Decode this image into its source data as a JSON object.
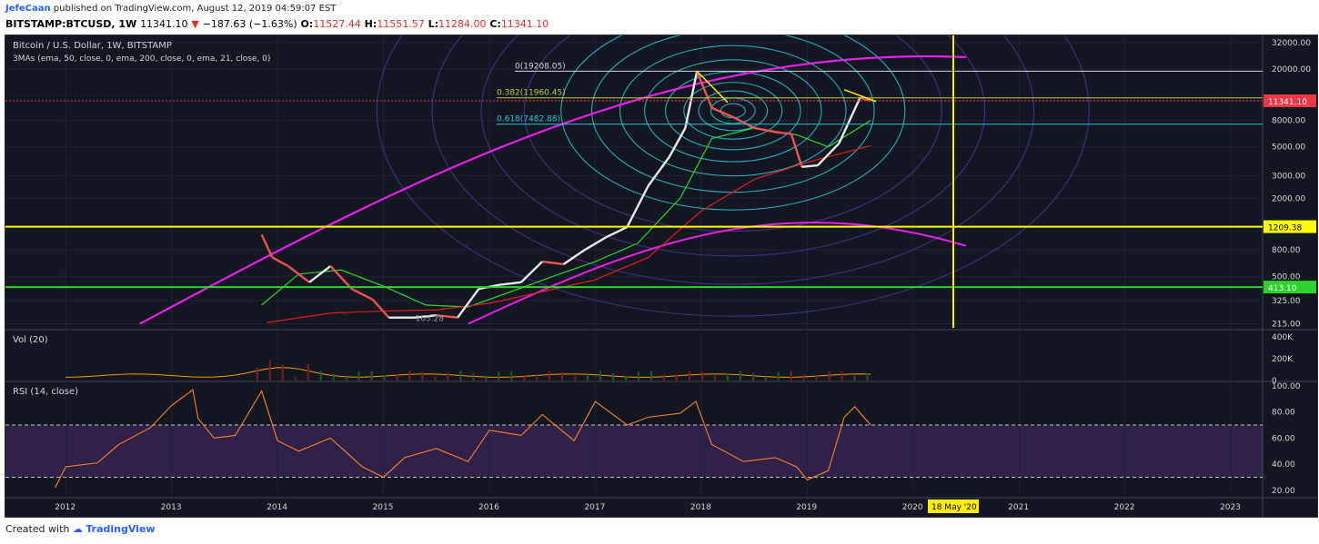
{
  "header": {
    "author": "JefeCaan",
    "published": "published on TradingView.com, August 12, 2019 04:59:07 EST",
    "symbol": "BITSTAMP:BTCUSD, 1W",
    "last": "11341.10",
    "change": "−187.63 (−1.63%)",
    "o_label": "O:",
    "o": "11527.44",
    "h_label": "H:",
    "h": "11551.57",
    "l_label": "L:",
    "l": "11284.00",
    "c_label": "C:",
    "c": "11341.10"
  },
  "footer": {
    "created_with": "Created with",
    "brand": "TradingView"
  },
  "chart_data": [
    {
      "type": "line",
      "title": "Bitcoin / U.S. Dollar, 1W, BITSTAMP",
      "indicator_label": "3MAs (ema, 50, close, 0, ema, 200, close, 0, ema, 21, close, 0)",
      "y_scale": "log",
      "ylim": [
        200,
        34000
      ],
      "y_ticks": [
        "32000.00",
        "20000.00",
        "8000.00",
        "5000.00",
        "3000.00",
        "2000.00",
        "800.00",
        "500.00",
        "325.00",
        "215.00"
      ],
      "x_ticks": [
        "2012",
        "2013",
        "2014",
        "2015",
        "2016",
        "2017",
        "2018",
        "2019",
        "2020",
        "2021",
        "2022",
        "2023"
      ],
      "x_range": [
        2011.5,
        2023.3
      ],
      "series": [
        {
          "values_x": [
            2013.85,
            2013.95,
            2014.1,
            2014.3,
            2014.5,
            2014.7,
            2014.9,
            2015.05,
            2015.3,
            2015.5,
            2015.7,
            2015.9,
            2016.1,
            2016.3,
            2016.5,
            2016.7,
            2016.9,
            2017.1,
            2017.3,
            2017.5,
            2017.7,
            2017.85,
            2017.96,
            2018.1,
            2018.3,
            2018.5,
            2018.7,
            2018.85,
            2018.95,
            2019.1,
            2019.3,
            2019.5,
            2019.6
          ],
          "values": [
            1050,
            700,
            600,
            450,
            600,
            400,
            330,
            240,
            240,
            250,
            240,
            400,
            430,
            450,
            650,
            620,
            800,
            1000,
            1200,
            2500,
            4200,
            7000,
            19200,
            10000,
            8500,
            7000,
            6500,
            6300,
            3500,
            3600,
            5300,
            12000,
            11341
          ]
        }
      ],
      "ema_series": [
        {
          "color": "#2bd42b",
          "values_x": [
            2013.85,
            2014.2,
            2014.6,
            2015.0,
            2015.4,
            2015.8,
            2016.2,
            2016.6,
            2017.0,
            2017.4,
            2017.8,
            2018.1,
            2018.5,
            2018.9,
            2019.2,
            2019.6
          ],
          "values": [
            300,
            520,
            560,
            420,
            300,
            290,
            380,
            500,
            650,
            900,
            2000,
            5800,
            7000,
            6200,
            5000,
            8000
          ]
        },
        {
          "color": "#e11d1d",
          "values_x": [
            2013.9,
            2014.5,
            2015.0,
            2015.5,
            2016.0,
            2016.5,
            2017.0,
            2017.5,
            2018.0,
            2018.5,
            2019.0,
            2019.6
          ],
          "values": [
            220,
            260,
            270,
            275,
            310,
            380,
            470,
            700,
            1600,
            2800,
            3800,
            5100
          ]
        }
      ],
      "horizontal_levels": [
        {
          "label": "1209.38",
          "value": 1209.38,
          "color": "#ffff00"
        },
        {
          "label": "413.10",
          "value": 413.1,
          "color": "#2bd42b"
        },
        {
          "label": "11341.10",
          "value": 11341.1,
          "color": "#f23645"
        }
      ],
      "fib_levels": [
        {
          "label": "0(19208.05)",
          "value": 19208.05
        },
        {
          "label": "0.382(11960.45)",
          "value": 11960.45
        },
        {
          "label": "0.618(7482.88)",
          "value": 7482.88
        }
      ],
      "vertical_marker": {
        "label": "18 May '20",
        "x": 2020.38
      },
      "annotation_low": "163.28"
    },
    {
      "type": "bar",
      "title": "Vol (20)",
      "y_ticks": [
        "400K",
        "200K",
        "0"
      ],
      "ylim": [
        0,
        400000
      ]
    },
    {
      "type": "line",
      "title": "RSI (14, close)",
      "ylim": [
        15,
        102
      ],
      "y_ticks": [
        "100.00",
        "80.00",
        "60.00",
        "40.00",
        "20.00"
      ],
      "bands": [
        70,
        30
      ],
      "series": [
        {
          "values_x": [
            2011.9,
            2012.0,
            2012.3,
            2012.5,
            2012.8,
            2013.0,
            2013.2,
            2013.25,
            2013.4,
            2013.6,
            2013.85,
            2014.0,
            2014.2,
            2014.5,
            2014.8,
            2015.0,
            2015.2,
            2015.5,
            2015.8,
            2016.0,
            2016.3,
            2016.5,
            2016.8,
            2017.0,
            2017.3,
            2017.5,
            2017.8,
            2017.95,
            2018.1,
            2018.4,
            2018.7,
            2018.9,
            2019.0,
            2019.2,
            2019.35,
            2019.45,
            2019.6
          ],
          "values": [
            22,
            38,
            41,
            55,
            68,
            85,
            97,
            75,
            60,
            62,
            96,
            58,
            50,
            60,
            38,
            30,
            45,
            52,
            42,
            66,
            62,
            78,
            58,
            88,
            70,
            76,
            79,
            88,
            55,
            42,
            45,
            38,
            28,
            35,
            76,
            84,
            70
          ]
        }
      ]
    }
  ]
}
